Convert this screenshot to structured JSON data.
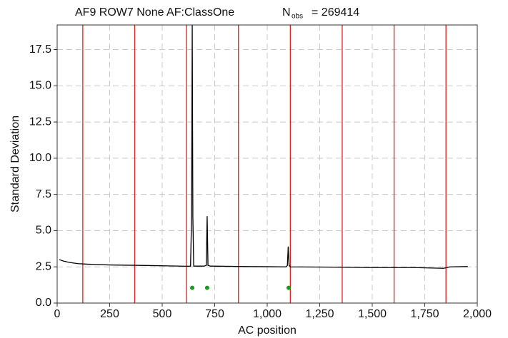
{
  "chart_data": {
    "type": "line",
    "title": "AF9 ROW7 None AF:ClassOne",
    "stat_name": "N",
    "stat_subscript": "obs",
    "stat_text": "= 269414",
    "x_label": "AC position",
    "y_label": "Standard Deviation",
    "xlim": [
      0,
      2000
    ],
    "ylim": [
      0,
      19.2
    ],
    "xticks": [
      0,
      250,
      500,
      750,
      {
        "value": 1000,
        "label": "1,000"
      },
      {
        "value": 1250,
        "label": "1,250"
      },
      {
        "value": 1500,
        "label": "1,500"
      },
      {
        "value": 1750,
        "label": "1,750"
      },
      {
        "value": 2000,
        "label": "2,000"
      }
    ],
    "yticks": [
      {
        "value": 0,
        "label": "0.0"
      },
      {
        "value": 2.5,
        "label": "2.5"
      },
      {
        "value": 5,
        "label": "5.0"
      },
      {
        "value": 7.5,
        "label": "7.5"
      },
      {
        "value": 10,
        "label": "10.0"
      },
      {
        "value": 12.5,
        "label": "12.5"
      },
      {
        "value": 15,
        "label": "15.0"
      },
      {
        "value": 17.5,
        "label": "17.5"
      }
    ],
    "grid": true,
    "grid_color": "#c8c8c8",
    "vlines": {
      "color": "#e02020",
      "values": [
        122,
        369,
        616,
        863,
        1110,
        1357,
        1604,
        1851
      ]
    },
    "series": [
      {
        "mode": "line",
        "color": "#000000",
        "x": [
          10,
          30,
          60,
          100,
          150,
          250,
          400,
          550,
          620,
          635,
          640,
          643,
          646,
          650,
          700,
          710,
          714,
          718,
          730,
          900,
          1090,
          1096,
          1100,
          1104,
          1110,
          1300,
          1500,
          1700,
          1840,
          1855,
          1870,
          1955
        ],
        "values": [
          3.0,
          2.9,
          2.8,
          2.72,
          2.68,
          2.63,
          2.6,
          2.56,
          2.54,
          2.55,
          6,
          19.2,
          6,
          2.55,
          2.55,
          2.6,
          6.0,
          2.6,
          2.55,
          2.52,
          2.5,
          2.6,
          3.9,
          2.6,
          2.5,
          2.48,
          2.45,
          2.45,
          2.4,
          2.45,
          2.5,
          2.52
        ]
      },
      {
        "mode": "markers",
        "color": "#1a9a1a",
        "x": [
          643,
          714,
          1102
        ],
        "values": [
          1.05,
          1.05,
          1.05
        ]
      }
    ]
  }
}
